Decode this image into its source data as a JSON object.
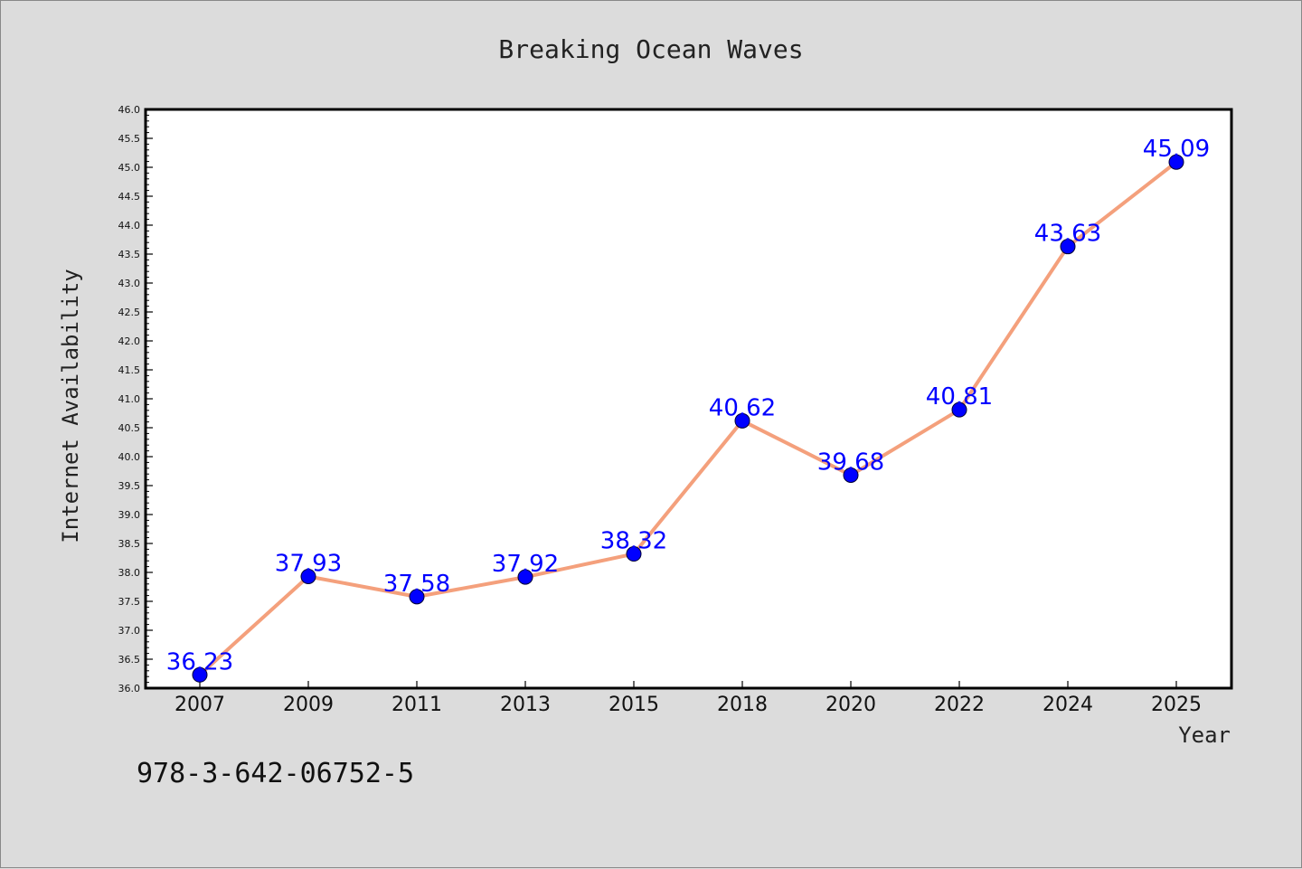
{
  "chart_data": {
    "type": "line",
    "title": "Breaking Ocean Waves",
    "xlabel": "Year",
    "ylabel": "Internet Availability",
    "categories": [
      "2007",
      "2009",
      "2011",
      "2013",
      "2015",
      "2018",
      "2020",
      "2022",
      "2024",
      "2025"
    ],
    "series": [
      {
        "values": [
          36.23,
          37.93,
          37.58,
          37.92,
          38.32,
          40.62,
          39.68,
          40.81,
          43.63,
          45.09
        ],
        "data_labels": [
          "36.23",
          "37.93",
          "37.58",
          "37.92",
          "38.32",
          "40.62",
          "39.68",
          "40.81",
          "43.63",
          "45.09"
        ],
        "line_color": "#f4a07c",
        "marker_color": "#0000ff",
        "label_color": "#0000ff"
      }
    ],
    "ylim": [
      36.0,
      46.0
    ],
    "yticks": [
      "36.0",
      "36.5",
      "37.0",
      "37.5",
      "38.0",
      "38.5",
      "39.0",
      "39.5",
      "40.0",
      "40.5",
      "41.0",
      "41.5",
      "42.0",
      "42.5",
      "43.0",
      "43.5",
      "44.0",
      "44.5",
      "45.0",
      "45.5",
      "46.0"
    ],
    "grid": false,
    "legend": "none"
  },
  "footer": {
    "isbn": "978-3-642-06752-5"
  },
  "colors": {
    "background": "#dcdcdc",
    "plot_area": "#ffffff",
    "axis": "#000000"
  }
}
